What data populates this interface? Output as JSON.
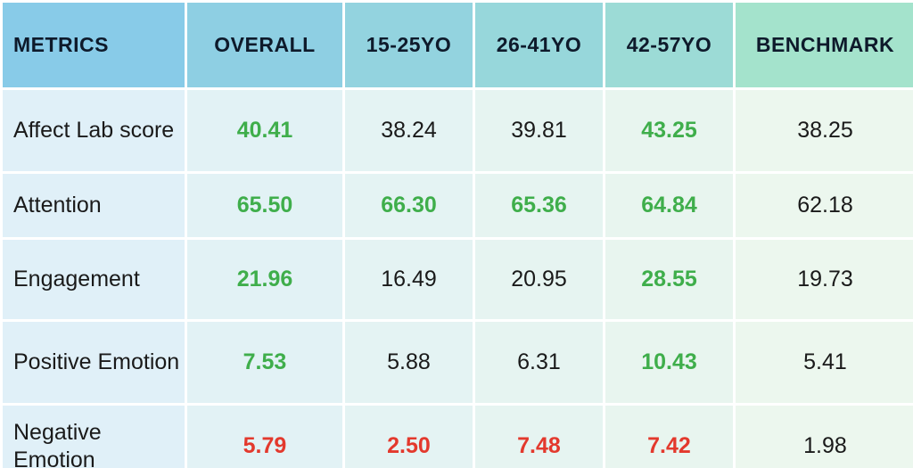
{
  "headers": [
    "METRICS",
    "OVERALL",
    "15-25YO",
    "26-41YO",
    "42-57YO",
    "BENCHMARK"
  ],
  "rows": [
    {
      "metric": "Affect Lab score",
      "overall": "40.41",
      "age_15_25": "38.24",
      "age_26_41": "39.81",
      "age_42_57": "43.25",
      "benchmark": "38.25"
    },
    {
      "metric": "Attention",
      "overall": "65.50",
      "age_15_25": "66.30",
      "age_26_41": "65.36",
      "age_42_57": "64.84",
      "benchmark": "62.18"
    },
    {
      "metric": "Engagement",
      "overall": "21.96",
      "age_15_25": "16.49",
      "age_26_41": "20.95",
      "age_42_57": "28.55",
      "benchmark": "19.73"
    },
    {
      "metric": "Positive Emotion",
      "overall": "7.53",
      "age_15_25": "5.88",
      "age_26_41": "6.31",
      "age_42_57": "10.43",
      "benchmark": "5.41"
    },
    {
      "metric": "Negative Emotion",
      "overall": "5.79",
      "age_15_25": "2.50",
      "age_26_41": "7.48",
      "age_42_57": "7.42",
      "benchmark": "1.98"
    }
  ],
  "colors": {
    "highlight_good": "#3fae4b",
    "highlight_bad": "#e3392d",
    "header_gradient_start": "#88cbe8",
    "header_gradient_end": "#a4e3cc"
  }
}
